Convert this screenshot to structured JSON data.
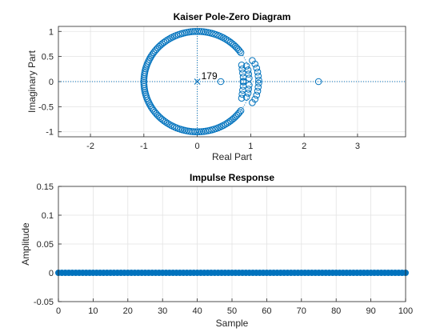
{
  "chart_data": [
    {
      "type": "scatter",
      "title": "Kaiser Pole-Zero Diagram",
      "xlabel": "Real Part",
      "ylabel": "Imaginary Part",
      "xlim": [
        -2.6,
        3.9
      ],
      "ylim": [
        -1.1,
        1.1
      ],
      "xticks": [
        "-2",
        "-1",
        "0",
        "1",
        "2",
        "3"
      ],
      "yticks": [
        "-1",
        "-0.5",
        "0",
        "0.5",
        "1"
      ],
      "grid": true,
      "pole_annotation": "179",
      "poles": [
        {
          "x": 0,
          "y": 0,
          "multiplicity": 179
        }
      ],
      "zeros_unit_circle_count": 158,
      "zeros_extra": [
        {
          "x": 0.44,
          "y": 0
        },
        {
          "x": 2.27,
          "y": 0
        },
        {
          "x": 0.83,
          "y": 0.33
        },
        {
          "x": 0.83,
          "y": -0.33
        },
        {
          "x": 0.84,
          "y": 0.25
        },
        {
          "x": 0.84,
          "y": -0.25
        },
        {
          "x": 0.85,
          "y": 0.17
        },
        {
          "x": 0.85,
          "y": -0.17
        },
        {
          "x": 0.86,
          "y": 0.09
        },
        {
          "x": 0.86,
          "y": -0.09
        },
        {
          "x": 0.86,
          "y": 0.01
        },
        {
          "x": 0.86,
          "y": -0.01
        },
        {
          "x": 0.92,
          "y": 0.31
        },
        {
          "x": 0.92,
          "y": -0.31
        },
        {
          "x": 0.95,
          "y": 0.23
        },
        {
          "x": 0.95,
          "y": -0.23
        },
        {
          "x": 0.96,
          "y": 0.15
        },
        {
          "x": 0.96,
          "y": -0.15
        },
        {
          "x": 0.97,
          "y": 0.07
        },
        {
          "x": 0.97,
          "y": -0.07
        },
        {
          "x": 1.03,
          "y": 0.42
        },
        {
          "x": 1.03,
          "y": -0.42
        },
        {
          "x": 1.08,
          "y": 0.35
        },
        {
          "x": 1.08,
          "y": -0.35
        },
        {
          "x": 1.11,
          "y": 0.27
        },
        {
          "x": 1.11,
          "y": -0.27
        },
        {
          "x": 1.13,
          "y": 0.19
        },
        {
          "x": 1.13,
          "y": -0.19
        },
        {
          "x": 1.14,
          "y": 0.11
        },
        {
          "x": 1.14,
          "y": -0.11
        },
        {
          "x": 1.15,
          "y": 0.03
        },
        {
          "x": 1.15,
          "y": -0.03
        }
      ],
      "color": "#0072BD"
    },
    {
      "type": "stem",
      "title": "Impulse Response",
      "xlabel": "Sample",
      "ylabel": "Amplitude",
      "xlim": [
        0,
        100
      ],
      "ylim": [
        -0.05,
        0.15
      ],
      "xticks": [
        "0",
        "10",
        "20",
        "30",
        "40",
        "50",
        "60",
        "70",
        "80",
        "90",
        "100"
      ],
      "yticks": [
        "-0.05",
        "0",
        "0.05",
        "0.1",
        "0.15"
      ],
      "grid": true,
      "x": [
        0,
        1,
        2,
        3,
        4,
        5,
        6,
        7,
        8,
        9,
        10,
        11,
        12,
        13,
        14,
        15,
        16,
        17,
        18,
        19,
        20,
        21,
        22,
        23,
        24,
        25,
        26,
        27,
        28,
        29,
        30,
        31,
        32,
        33,
        34,
        35,
        36,
        37,
        38,
        39,
        40,
        41,
        42,
        43,
        44,
        45,
        46,
        47,
        48,
        49,
        50,
        51,
        52,
        53,
        54,
        55,
        56,
        57,
        58,
        59,
        60,
        61,
        62,
        63,
        64,
        65,
        66,
        67,
        68,
        69,
        70,
        71,
        72,
        73,
        74,
        75,
        76,
        77,
        78,
        79,
        80,
        81,
        82,
        83,
        84,
        85,
        86,
        87,
        88,
        89,
        90,
        91,
        92,
        93,
        94,
        95,
        96,
        97,
        98,
        99,
        100
      ],
      "values": [
        0.0,
        0.0,
        0.0,
        0.0,
        0.0,
        0.0,
        0.0,
        0.0,
        0.0,
        0.0,
        0.0,
        0.0,
        0.0,
        0.0,
        0.0,
        0.0,
        0.0,
        0.0,
        0.0,
        0.0,
        0.0,
        0.0,
        0.0,
        0.0,
        0.0,
        0.0,
        0.0,
        0.0,
        0.0,
        0.0,
        0.0,
        0.0,
        0.0,
        0.0,
        0.0,
        0.0,
        0.0,
        0.0,
        0.0,
        0.0,
        0.0,
        0.0,
        0.0,
        0.0,
        0.0,
        0.0,
        0.0,
        0.0,
        0.0,
        0.0,
        0.0,
        0.0,
        0.0,
        0.0,
        0.0,
        0.0,
        0.0,
        0.0,
        0.0,
        0.0,
        0.0,
        0.0,
        0.0,
        0.0,
        0.0,
        0.0,
        0.0,
        0.0,
        0.0,
        0.0,
        0.0,
        0.0,
        0.0,
        0.0,
        0.0,
        0.0,
        0.0,
        0.0,
        0.0,
        0.0,
        0.0,
        0.0,
        0.0,
        0.0,
        0.0,
        0.0,
        0.0,
        0.0,
        0.0,
        0.0,
        0.0,
        0.0,
        0.0,
        0.0,
        0.0,
        0.0,
        0.0,
        0.0,
        0.0,
        0.0,
        0.0
      ],
      "color": "#0072BD"
    }
  ]
}
